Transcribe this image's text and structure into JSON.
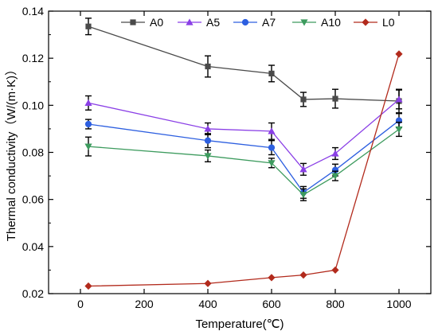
{
  "chart_data": {
    "type": "line",
    "title": "",
    "xlabel": "Temperature(℃)",
    "ylabel": "Thermal conductivity（W/(m·K)）",
    "xlim": [
      -100,
      1100
    ],
    "ylim": [
      0.02,
      0.14
    ],
    "xticks": [
      0,
      200,
      400,
      600,
      800,
      1000
    ],
    "yticks": [
      0.02,
      0.04,
      0.06,
      0.08,
      0.1,
      0.12,
      0.14
    ],
    "ytick_labels": [
      "0.02",
      "0.04",
      "0.06",
      "0.08",
      "0.10",
      "0.12",
      "0.14"
    ],
    "grid": false,
    "legend": "top",
    "series": [
      {
        "name": "A0",
        "color": "#4a4a4a",
        "marker": "square",
        "x": [
          25,
          400,
          600,
          700,
          800,
          1000
        ],
        "values": [
          0.1335,
          0.1165,
          0.1135,
          0.1025,
          0.1028,
          0.1018
        ],
        "err": [
          0.0035,
          0.0045,
          0.0035,
          0.003,
          0.004,
          0.005
        ]
      },
      {
        "name": "A5",
        "color": "#8a3fe6",
        "marker": "triangle-up",
        "x": [
          25,
          400,
          600,
          700,
          800,
          1000
        ],
        "values": [
          0.101,
          0.09,
          0.089,
          0.0728,
          0.0795,
          0.1025
        ],
        "err": [
          0.003,
          0.0025,
          0.0035,
          0.0025,
          0.0025,
          0.004
        ]
      },
      {
        "name": "A7",
        "color": "#2d5fe0",
        "marker": "circle",
        "x": [
          25,
          400,
          600,
          700,
          800,
          1000
        ],
        "values": [
          0.092,
          0.085,
          0.082,
          0.063,
          0.0725,
          0.0935
        ],
        "err": [
          0.002,
          0.003,
          0.003,
          0.0025,
          0.0025,
          0.003
        ]
      },
      {
        "name": "A10",
        "color": "#3d9b5e",
        "marker": "triangle-down",
        "x": [
          25,
          400,
          600,
          700,
          800,
          1000
        ],
        "values": [
          0.0825,
          0.0785,
          0.0755,
          0.062,
          0.07,
          0.0898
        ],
        "err": [
          0.004,
          0.0025,
          0.002,
          0.0025,
          0.002,
          0.003
        ]
      },
      {
        "name": "L0",
        "color": "#b22a1c",
        "marker": "diamond",
        "x": [
          25,
          400,
          600,
          700,
          800,
          1000
        ],
        "values": [
          0.0232,
          0.0243,
          0.0268,
          0.0279,
          0.03,
          0.1218
        ],
        "err": [
          0,
          0,
          0,
          0,
          0,
          0
        ]
      }
    ]
  }
}
